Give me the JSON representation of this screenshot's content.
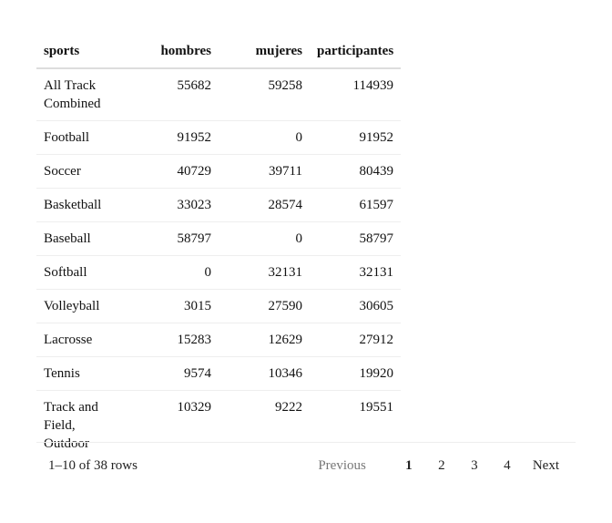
{
  "table": {
    "headers": [
      "sports",
      "hombres",
      "mujeres",
      "participantes"
    ],
    "rows": [
      [
        "All Track Combined",
        "55682",
        "59258",
        "114939"
      ],
      [
        "Football",
        "91952",
        "0",
        "91952"
      ],
      [
        "Soccer",
        "40729",
        "39711",
        "80439"
      ],
      [
        "Basketball",
        "33023",
        "28574",
        "61597"
      ],
      [
        "Baseball",
        "58797",
        "0",
        "58797"
      ],
      [
        "Softball",
        "0",
        "32131",
        "32131"
      ],
      [
        "Volleyball",
        "3015",
        "27590",
        "30605"
      ],
      [
        "Lacrosse",
        "15283",
        "12629",
        "27912"
      ],
      [
        "Tennis",
        "9574",
        "10346",
        "19920"
      ],
      [
        "Track and Field, Outdoor",
        "10329",
        "9222",
        "19551"
      ]
    ]
  },
  "pagination": {
    "info": "1–10 of 38 rows",
    "previous": "Previous",
    "pages": [
      "1",
      "2",
      "3",
      "4"
    ],
    "active_page": "1",
    "next": "Next"
  }
}
